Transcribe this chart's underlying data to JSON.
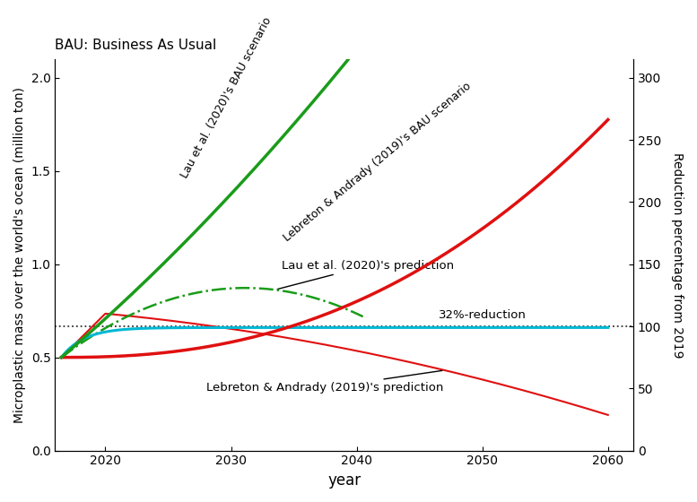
{
  "title": "BAU: Business As Usual",
  "xlabel": "year",
  "ylabel_left": "Microplastic mass over the world's ocean (million ton)",
  "ylabel_right": "Reduction percentage from 2019",
  "xlim": [
    2016,
    2062
  ],
  "ylim_left": [
    0.0,
    2.1
  ],
  "ylim_right": [
    0,
    315
  ],
  "yticks_left": [
    0.0,
    0.5,
    1.0,
    1.5,
    2.0
  ],
  "yticks_right": [
    0,
    50,
    100,
    150,
    200,
    250,
    300
  ],
  "xticks": [
    2020,
    2030,
    2040,
    2050,
    2060
  ],
  "lau_bau_color": "#1a9c1a",
  "lebreton_bau_color": "#e01010",
  "lau_pred_color": "#1a9c1a",
  "lebreton_pred_color": "#e01010",
  "cyan_color": "#00b8d4",
  "dotted_color": "#333333",
  "dotted_y": 0.665,
  "x_start": 2016.5,
  "x_end_lau_bau": 2040.5,
  "x_end_lau_pred": 2040.5
}
